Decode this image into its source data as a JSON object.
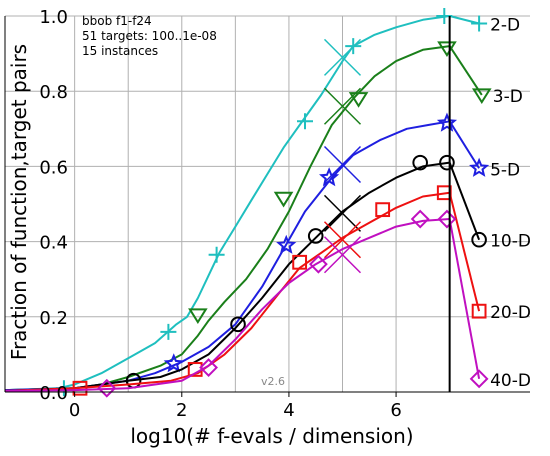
{
  "chart_data": {
    "type": "line",
    "xlabel": "log10(# f-evals / dimension)",
    "ylabel": "Fraction of function,target pairs",
    "xlim": [
      -1.3,
      8.5
    ],
    "ylim": [
      0,
      1.0
    ],
    "x_ticks": [
      0,
      2,
      4,
      6
    ],
    "x_tick_labels": [
      "0",
      "2",
      "4",
      "6"
    ],
    "y_ticks": [
      0.0,
      0.2,
      0.4,
      0.6,
      0.8,
      1.0
    ],
    "y_tick_labels": [
      "0.0",
      "0.2",
      "0.4",
      "0.6",
      "0.8",
      "1.0"
    ],
    "grid": true,
    "legend": "right-side labels",
    "annotation_lines": [
      "bbob f1-f24",
      "51 targets: 100..1e-08",
      "15 instances"
    ],
    "version_label": "v2.6",
    "budget_line_x": 7.0,
    "series": [
      {
        "name": "2-D",
        "color": "#1fbfbf",
        "marker": "plus",
        "points": [
          [
            -1.3,
            0.005
          ],
          [
            -0.3,
            0.01
          ],
          [
            0.0,
            0.02
          ],
          [
            0.5,
            0.05
          ],
          [
            1.0,
            0.09
          ],
          [
            1.5,
            0.13
          ],
          [
            1.9,
            0.18
          ],
          [
            2.1,
            0.2
          ],
          [
            2.3,
            0.25
          ],
          [
            2.5,
            0.31
          ],
          [
            2.7,
            0.37
          ],
          [
            3.0,
            0.44
          ],
          [
            3.3,
            0.51
          ],
          [
            3.6,
            0.58
          ],
          [
            3.9,
            0.65
          ],
          [
            4.3,
            0.73
          ],
          [
            4.6,
            0.79
          ],
          [
            5.0,
            0.88
          ],
          [
            5.2,
            0.92
          ],
          [
            5.6,
            0.95
          ],
          [
            6.0,
            0.97
          ],
          [
            6.5,
            0.99
          ],
          [
            7.0,
            1.0
          ]
        ],
        "marker_points": [
          [
            -0.2,
            0.01
          ],
          [
            1.75,
            0.16
          ],
          [
            2.65,
            0.365
          ],
          [
            4.3,
            0.72
          ],
          [
            5.2,
            0.92
          ],
          [
            6.9,
            1.0
          ]
        ],
        "cross": [
          5.0,
          0.89
        ],
        "end": [
          7.55,
          0.98
        ]
      },
      {
        "name": "3-D",
        "color": "#1a7f1a",
        "marker": "triangle-down",
        "points": [
          [
            -1.3,
            0.005
          ],
          [
            0.0,
            0.01
          ],
          [
            0.5,
            0.02
          ],
          [
            1.0,
            0.04
          ],
          [
            1.6,
            0.07
          ],
          [
            2.0,
            0.1
          ],
          [
            2.3,
            0.15
          ],
          [
            2.5,
            0.19
          ],
          [
            2.8,
            0.24
          ],
          [
            3.2,
            0.3
          ],
          [
            3.6,
            0.38
          ],
          [
            4.0,
            0.48
          ],
          [
            4.4,
            0.6
          ],
          [
            4.8,
            0.71
          ],
          [
            5.2,
            0.78
          ],
          [
            5.6,
            0.84
          ],
          [
            6.0,
            0.88
          ],
          [
            6.5,
            0.91
          ],
          [
            7.0,
            0.92
          ]
        ],
        "marker_points": [
          [
            2.3,
            0.205
          ],
          [
            3.9,
            0.515
          ],
          [
            5.3,
            0.78
          ],
          [
            6.95,
            0.915
          ]
        ],
        "cross": [
          5.0,
          0.76
        ],
        "end": [
          7.6,
          0.79
        ]
      },
      {
        "name": "5-D",
        "color": "#1f1fe0",
        "marker": "star",
        "points": [
          [
            -1.3,
            0.005
          ],
          [
            0.0,
            0.01
          ],
          [
            0.5,
            0.02
          ],
          [
            1.0,
            0.03
          ],
          [
            1.5,
            0.05
          ],
          [
            2.0,
            0.08
          ],
          [
            2.5,
            0.12
          ],
          [
            3.0,
            0.18
          ],
          [
            3.5,
            0.28
          ],
          [
            3.9,
            0.38
          ],
          [
            4.3,
            0.48
          ],
          [
            4.8,
            0.57
          ],
          [
            5.2,
            0.63
          ],
          [
            5.7,
            0.67
          ],
          [
            6.2,
            0.7
          ],
          [
            6.6,
            0.71
          ],
          [
            7.0,
            0.72
          ]
        ],
        "marker_points": [
          [
            1.85,
            0.075
          ],
          [
            3.95,
            0.39
          ],
          [
            4.75,
            0.57
          ],
          [
            6.95,
            0.715
          ]
        ],
        "cross": [
          5.0,
          0.605
        ],
        "end": [
          7.55,
          0.595
        ]
      },
      {
        "name": "10-D",
        "color": "#000000",
        "marker": "circle",
        "points": [
          [
            -1.3,
            0.003
          ],
          [
            0.0,
            0.01
          ],
          [
            1.0,
            0.03
          ],
          [
            1.6,
            0.04
          ],
          [
            2.0,
            0.06
          ],
          [
            2.5,
            0.1
          ],
          [
            3.0,
            0.17
          ],
          [
            3.5,
            0.25
          ],
          [
            4.0,
            0.34
          ],
          [
            4.5,
            0.41
          ],
          [
            5.0,
            0.48
          ],
          [
            5.5,
            0.53
          ],
          [
            6.0,
            0.57
          ],
          [
            6.5,
            0.6
          ],
          [
            7.0,
            0.61
          ]
        ],
        "marker_points": [
          [
            1.1,
            0.03
          ],
          [
            3.05,
            0.18
          ],
          [
            4.5,
            0.415
          ],
          [
            6.45,
            0.61
          ],
          [
            6.95,
            0.61
          ]
        ],
        "cross": [
          5.0,
          0.475
        ],
        "end": [
          7.55,
          0.405
        ]
      },
      {
        "name": "20-D",
        "color": "#ee1111",
        "marker": "square",
        "points": [
          [
            -1.3,
            0.003
          ],
          [
            0.0,
            0.01
          ],
          [
            1.0,
            0.02
          ],
          [
            1.8,
            0.03
          ],
          [
            2.3,
            0.05
          ],
          [
            2.8,
            0.1
          ],
          [
            3.3,
            0.17
          ],
          [
            3.8,
            0.26
          ],
          [
            4.2,
            0.33
          ],
          [
            4.6,
            0.37
          ],
          [
            5.0,
            0.41
          ],
          [
            5.5,
            0.45
          ],
          [
            6.0,
            0.49
          ],
          [
            6.5,
            0.52
          ],
          [
            7.0,
            0.53
          ]
        ],
        "marker_points": [
          [
            0.1,
            0.01
          ],
          [
            2.25,
            0.06
          ],
          [
            4.2,
            0.345
          ],
          [
            5.75,
            0.485
          ],
          [
            6.9,
            0.53
          ]
        ],
        "cross": [
          5.0,
          0.405
        ],
        "end": [
          7.55,
          0.215
        ]
      },
      {
        "name": "40-D",
        "color": "#c010c0",
        "marker": "diamond",
        "points": [
          [
            -1.3,
            0.003
          ],
          [
            0.0,
            0.005
          ],
          [
            1.0,
            0.01
          ],
          [
            2.0,
            0.03
          ],
          [
            2.5,
            0.07
          ],
          [
            3.0,
            0.14
          ],
          [
            3.5,
            0.22
          ],
          [
            4.0,
            0.29
          ],
          [
            4.5,
            0.34
          ],
          [
            5.0,
            0.38
          ],
          [
            5.5,
            0.41
          ],
          [
            6.0,
            0.44
          ],
          [
            6.5,
            0.455
          ],
          [
            7.0,
            0.46
          ]
        ],
        "marker_points": [
          [
            0.6,
            0.01
          ],
          [
            2.5,
            0.065
          ],
          [
            4.55,
            0.34
          ],
          [
            6.45,
            0.46
          ],
          [
            6.95,
            0.46
          ]
        ],
        "cross": [
          5.0,
          0.365
        ],
        "end": [
          7.55,
          0.035
        ]
      }
    ]
  }
}
